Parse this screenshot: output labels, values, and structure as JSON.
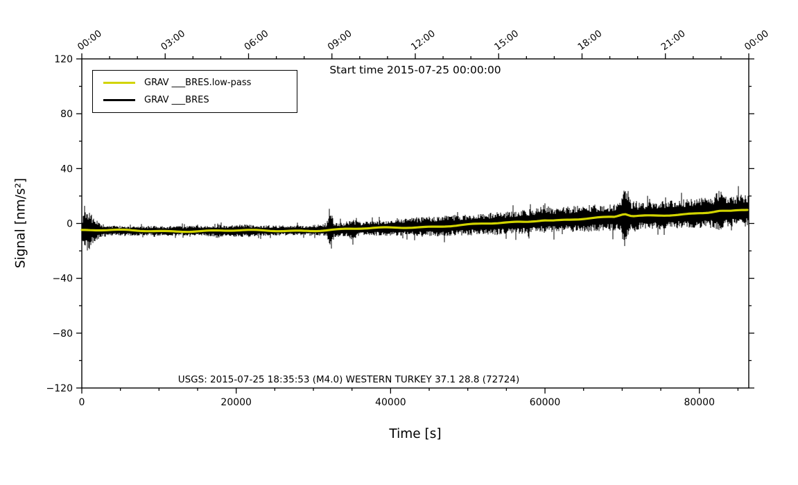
{
  "chart_data": {
    "type": "line",
    "title": "Start time 2015-07-25 00:00:00",
    "xlabel": "Time [s]",
    "ylabel": "Signal [nm/s²]",
    "xlim": [
      0,
      86400
    ],
    "ylim": [
      -120,
      120
    ],
    "grid": false,
    "legend_position": "top-left-inside",
    "x_ticks_bottom": {
      "values": [
        0,
        20000,
        40000,
        60000,
        80000
      ],
      "labels": [
        "0",
        "20000",
        "40000",
        "60000",
        "80000"
      ],
      "minor_interval": 5000
    },
    "x_ticks_top": {
      "seconds": [
        0,
        10800,
        21600,
        32400,
        43200,
        54000,
        64800,
        75600,
        86400
      ],
      "labels": [
        "00:00",
        "03:00",
        "06:00",
        "09:00",
        "12:00",
        "15:00",
        "18:00",
        "21:00",
        "00:00"
      ],
      "minor_interval": 3600
    },
    "y_ticks": {
      "values": [
        -120,
        -80,
        -40,
        0,
        40,
        80,
        120
      ],
      "labels": [
        "−120",
        "−80",
        "−40",
        "0",
        "40",
        "80",
        "120"
      ],
      "minor_interval": 20
    },
    "legend": [
      {
        "label": "GRAV ___BRES.low-pass",
        "color": "#d2d400"
      },
      {
        "label": "GRAV ___BRES",
        "color": "#000000"
      }
    ],
    "annotation": "USGS: 2015-07-25 18:35:53 (M4.0) WESTERN TURKEY 37.1 28.8 (72724)",
    "seed": 42,
    "series": [
      {
        "name": "GRAV ___BRES",
        "render": "noisy-band",
        "color": "#000000",
        "baseline": [
          [
            0,
            -5
          ],
          [
            4000,
            -5.2
          ],
          [
            10000,
            -5.4
          ],
          [
            16000,
            -5.5
          ],
          [
            20000,
            -5.4
          ],
          [
            26000,
            -5.2
          ],
          [
            30000,
            -5
          ],
          [
            32500,
            -4.6
          ],
          [
            35000,
            -4.2
          ],
          [
            38000,
            -3.6
          ],
          [
            42000,
            -2.8
          ],
          [
            46000,
            -2
          ],
          [
            50000,
            -1
          ],
          [
            54000,
            0
          ],
          [
            57500,
            1.2
          ],
          [
            59800,
            2.8
          ],
          [
            61000,
            2.4
          ],
          [
            63000,
            3
          ],
          [
            66000,
            3.8
          ],
          [
            69000,
            4.4
          ],
          [
            70300,
            6.8
          ],
          [
            71300,
            5
          ],
          [
            74000,
            5.8
          ],
          [
            78000,
            7
          ],
          [
            81000,
            8
          ],
          [
            82600,
            9.2
          ],
          [
            84000,
            8.6
          ],
          [
            86400,
            9.6
          ]
        ],
        "envelope": [
          [
            0,
            9
          ],
          [
            400,
            14
          ],
          [
            800,
            17
          ],
          [
            1500,
            9
          ],
          [
            2500,
            5
          ],
          [
            4000,
            3.6
          ],
          [
            15000,
            3.6
          ],
          [
            17000,
            4
          ],
          [
            17600,
            5.5
          ],
          [
            18400,
            4
          ],
          [
            21500,
            4.8
          ],
          [
            23000,
            3.8
          ],
          [
            28000,
            3.8
          ],
          [
            31700,
            4.2
          ],
          [
            32100,
            19
          ],
          [
            32700,
            6
          ],
          [
            34000,
            5
          ],
          [
            35000,
            7.5
          ],
          [
            36200,
            5
          ],
          [
            38000,
            5.5
          ],
          [
            42000,
            6.5
          ],
          [
            46000,
            7.5
          ],
          [
            52000,
            8
          ],
          [
            56000,
            8.5
          ],
          [
            59300,
            9
          ],
          [
            60000,
            12
          ],
          [
            60900,
            9
          ],
          [
            63000,
            9.5
          ],
          [
            65500,
            10
          ],
          [
            68000,
            9.5
          ],
          [
            69800,
            11
          ],
          [
            70300,
            25
          ],
          [
            71200,
            12
          ],
          [
            72500,
            10
          ],
          [
            76000,
            10.5
          ],
          [
            80000,
            11
          ],
          [
            82000,
            12
          ],
          [
            82600,
            15
          ],
          [
            83600,
            11
          ],
          [
            86400,
            12.5
          ]
        ]
      },
      {
        "name": "GRAV ___BRES.low-pass",
        "render": "smooth-line",
        "color": "#d2d400",
        "width": 3.2
      }
    ]
  }
}
